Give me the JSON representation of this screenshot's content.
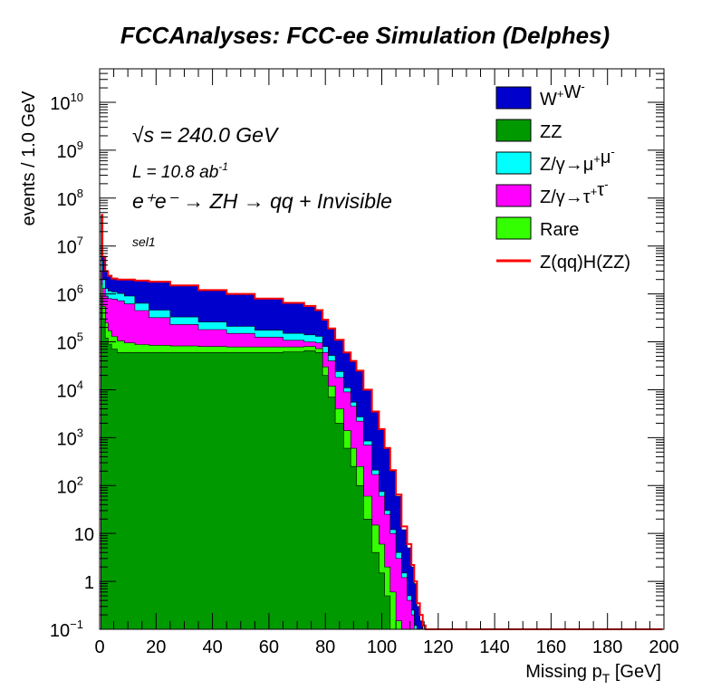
{
  "chart_data": {
    "type": "area",
    "title": "FCCAnalyses: FCC-ee Simulation (Delphes)",
    "xlabel_main": "Missing p",
    "xlabel_sub": "T",
    "xlabel_unit": " [GeV]",
    "ylabel": "events / 1.0 GeV",
    "xlim": [
      0,
      200
    ],
    "ylim": [
      0.1,
      50000000000
    ],
    "yscale": "log",
    "grid": false,
    "legend_position": "top-right",
    "x_tick_labels": [
      "0",
      "20",
      "40",
      "60",
      "80",
      "100",
      "120",
      "140",
      "160",
      "180",
      "200"
    ],
    "y_tick_labels": [
      {
        "base": "10",
        "exp": "−1"
      },
      {
        "base": "1",
        "exp": ""
      },
      {
        "base": "10",
        "exp": ""
      },
      {
        "base": "10",
        "exp": "2"
      },
      {
        "base": "10",
        "exp": "3"
      },
      {
        "base": "10",
        "exp": "4"
      },
      {
        "base": "10",
        "exp": "5"
      },
      {
        "base": "10",
        "exp": "6"
      },
      {
        "base": "10",
        "exp": "7"
      },
      {
        "base": "10",
        "exp": "8"
      },
      {
        "base": "10",
        "exp": "9"
      },
      {
        "base": "10",
        "exp": "10"
      }
    ],
    "annotations": {
      "sqrt_s": "√s = 240.0 GeV",
      "lumi_main": "L = 10.8 ab",
      "lumi_exp": "-1",
      "process": "e⁺e⁻ → ZH → qq + Invisible",
      "selection": "sel1"
    },
    "x": [
      0.5,
      1.5,
      2.5,
      3.5,
      5,
      7.5,
      10,
      15,
      20,
      30,
      40,
      50,
      60,
      70,
      75,
      78,
      80,
      82,
      85,
      88,
      90,
      92,
      95,
      98,
      100,
      102,
      104,
      106,
      108,
      110,
      111,
      112,
      113,
      114,
      115,
      116,
      117,
      118,
      119,
      120,
      130,
      150,
      170,
      199.5
    ],
    "series": [
      {
        "name": "ZZ",
        "color": "#009900",
        "values": [
          900000,
          300000,
          120000,
          90000,
          70000,
          60000,
          60000,
          60000,
          60000,
          60000,
          60000,
          60000,
          60000,
          62000,
          65000,
          60000,
          20000,
          7000,
          2000,
          600,
          250,
          100,
          20,
          4,
          1.5,
          0.5,
          0.1,
          0,
          0,
          0,
          0,
          0,
          0,
          0,
          0,
          0,
          0,
          0,
          0,
          0,
          0,
          0,
          0,
          0
        ]
      },
      {
        "name": "Rare",
        "color": "#33ff00",
        "values": [
          1600000,
          550000,
          250000,
          170000,
          130000,
          105000,
          95000,
          88000,
          85000,
          82000,
          80000,
          78000,
          78000,
          78000,
          80000,
          72000,
          30000,
          12000,
          4000,
          1400,
          600,
          250,
          60,
          15,
          6,
          2,
          0.6,
          0.15,
          0,
          0,
          0,
          0,
          0,
          0,
          0,
          0,
          0,
          0,
          0,
          0,
          0,
          0,
          0,
          0
        ]
      },
      {
        "name": "Z/γ→τ⁺τ⁻",
        "color": "#ff00ff",
        "values": [
          3000000,
          1300000,
          900000,
          800000,
          780000,
          720000,
          620000,
          450000,
          320000,
          230000,
          180000,
          150000,
          125000,
          108000,
          100000,
          95000,
          60000,
          40000,
          18000,
          9000,
          4500,
          2200,
          700,
          170,
          60,
          25,
          10,
          3,
          1.2,
          0.4,
          0.2,
          0.1,
          0,
          0,
          0,
          0,
          0,
          0,
          0,
          0,
          0,
          0,
          0,
          0
        ]
      },
      {
        "name": "Z/γ→μ⁺μ⁻",
        "color": "#00ffff",
        "values": [
          5000000,
          2000000,
          1300000,
          1150000,
          1100000,
          1020000,
          900000,
          640000,
          460000,
          330000,
          260000,
          210000,
          175000,
          150000,
          140000,
          130000,
          80000,
          52000,
          24000,
          11000,
          5500,
          2700,
          850,
          210,
          75,
          30,
          12,
          4,
          1.5,
          0.5,
          0.25,
          0.12,
          0,
          0,
          0,
          0,
          0,
          0,
          0,
          0,
          0,
          0,
          0,
          0
        ]
      },
      {
        "name": "W⁺W⁻",
        "color": "#0000cc",
        "values": [
          45000000,
          6000000,
          3000000,
          2400000,
          2100000,
          2000000,
          2000000,
          1900000,
          1800000,
          1500000,
          1200000,
          1000000,
          800000,
          650000,
          560000,
          460000,
          290000,
          190000,
          110000,
          60000,
          40000,
          25000,
          10000,
          3500,
          1500,
          600,
          200,
          60,
          12,
          5,
          2,
          0.9,
          0.3,
          0.15,
          0.1,
          0,
          0,
          0,
          0,
          0,
          0,
          0,
          0,
          0
        ]
      },
      {
        "name": "Z(qq)H(ZZ)",
        "color": "#ff0000",
        "values": [
          45000100,
          6000050,
          3000030,
          2400020,
          2100015,
          2000015,
          2000010,
          1900010,
          1800010,
          1500010,
          1200010,
          1000010,
          800010,
          650010,
          560010,
          460010,
          290010,
          190010,
          110010,
          60010,
          40010,
          25010,
          10010,
          3510,
          1510,
          610,
          210,
          65,
          14,
          6,
          2.2,
          1,
          0.35,
          0.2,
          0.12,
          0.1,
          0.1,
          0.1,
          0.1,
          0.1,
          0.1,
          0.1,
          0.1,
          0.1
        ]
      }
    ],
    "legend": [
      {
        "label_base": "W",
        "label_parts": [
          [
            "W",
            ""
          ],
          [
            "+",
            "sup"
          ],
          [
            "W",
            ""
          ],
          [
            "-",
            "sup"
          ]
        ],
        "color": "#0000cc",
        "kind": "box"
      },
      {
        "label_parts": [
          [
            "ZZ",
            ""
          ]
        ],
        "color": "#009900",
        "kind": "box"
      },
      {
        "label_parts": [
          [
            "Z/γ→μ",
            ""
          ],
          [
            "+",
            "sup"
          ],
          [
            "μ",
            ""
          ],
          [
            "-",
            "sup"
          ]
        ],
        "color": "#00ffff",
        "kind": "box"
      },
      {
        "label_parts": [
          [
            "Z/γ→τ",
            ""
          ],
          [
            "+",
            "sup"
          ],
          [
            "τ",
            ""
          ],
          [
            "-",
            "sup"
          ]
        ],
        "color": "#ff00ff",
        "kind": "box"
      },
      {
        "label_parts": [
          [
            "Rare",
            ""
          ]
        ],
        "color": "#33ff00",
        "kind": "box"
      },
      {
        "label_parts": [
          [
            "Z(qq)H(ZZ)",
            ""
          ]
        ],
        "color": "#ff0000",
        "kind": "line"
      }
    ]
  }
}
